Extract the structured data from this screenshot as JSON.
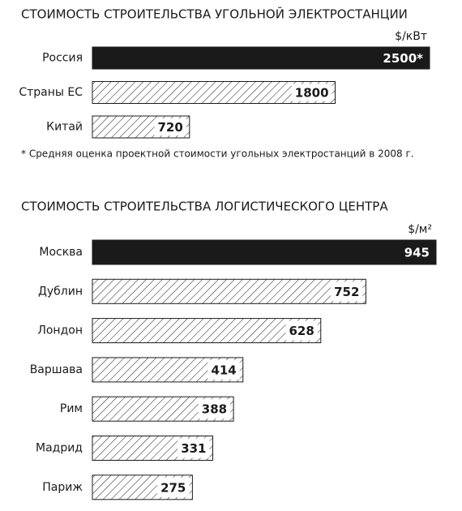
{
  "chart_data": [
    {
      "type": "bar",
      "orientation": "horizontal",
      "title": "СТОИМОСТЬ СТРОИТЕЛЬСТВА УГОЛЬНОЙ ЭЛЕКТРОСТАНЦИИ",
      "unit": "$/кВт",
      "categories": [
        "Россия",
        "Страны ЕС",
        "Китай"
      ],
      "values": [
        2500,
        1800,
        720
      ],
      "value_labels": [
        "2500*",
        "1800",
        "720"
      ],
      "colors": [
        "#1a1a1a",
        "#ffffff",
        "#ffffff"
      ],
      "hatch": [
        false,
        true,
        true
      ],
      "footnote": "* Средняя оценка проектной стоимости угольных электростанций в 2008 г."
    },
    {
      "type": "bar",
      "orientation": "horizontal",
      "title": "СТОИМОСТЬ СТРОИТЕЛЬСТВА ЛОГИСТИЧЕСКОГО ЦЕНТРА",
      "unit": "$/м²",
      "categories": [
        "Москва",
        "Дублин",
        "Лондон",
        "Варшава",
        "Рим",
        "Мадрид",
        "Париж"
      ],
      "values": [
        945,
        752,
        628,
        414,
        388,
        331,
        275
      ],
      "colors": [
        "#1a1a1a",
        "#ffffff",
        "#ffffff",
        "#ffffff",
        "#ffffff",
        "#ffffff",
        "#ffffff"
      ],
      "hatch": [
        false,
        true,
        true,
        true,
        true,
        true,
        true
      ]
    }
  ]
}
